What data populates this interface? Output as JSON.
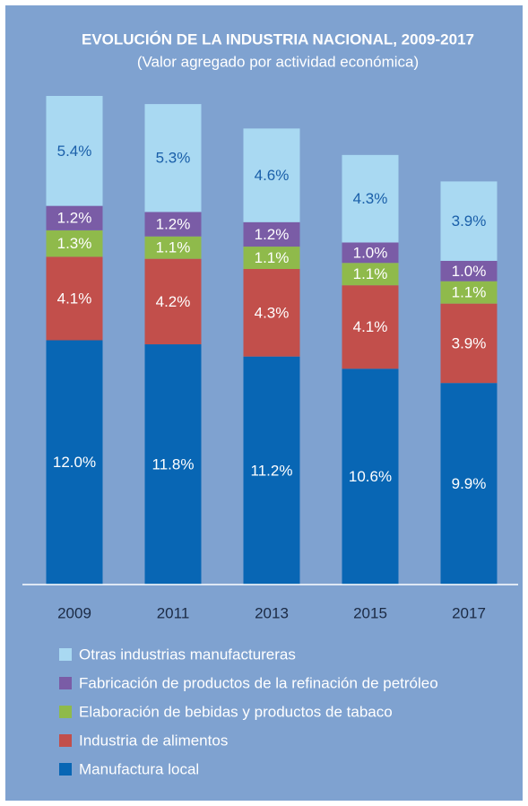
{
  "chart_data": {
    "type": "stacked_bar",
    "title": "EVOLUCIÓN DE LA INDUSTRIA NACIONAL, 2009-2017",
    "subtitle": "(Valor agregado por actividad económica)",
    "categories": [
      "2009",
      "2011",
      "2013",
      "2015",
      "2017"
    ],
    "series": [
      {
        "name": "Otras industrias manufactureras",
        "color": "#a9d9f2",
        "values": [
          5.4,
          5.3,
          4.6,
          4.3,
          3.9
        ],
        "value_labels": [
          "5.4%",
          "5.3%",
          "4.6%",
          "4.3%",
          "3.9%"
        ]
      },
      {
        "name": "Fabricación de productos de la refinación de petróleo",
        "color": "#7a5ca6",
        "values": [
          1.2,
          1.2,
          1.2,
          1.0,
          1.0
        ],
        "value_labels": [
          "1.2%",
          "1.2%",
          "1.2%",
          "1.0%",
          "1.0%"
        ]
      },
      {
        "name": "Elaboración de bebidas y productos de tabaco",
        "color": "#8fba4b",
        "values": [
          1.3,
          1.1,
          1.1,
          1.1,
          1.1
        ],
        "value_labels": [
          "1.3%",
          "1.1%",
          "1.1%",
          "1.1%",
          "1.1%"
        ]
      },
      {
        "name": "Industria de alimentos",
        "color": "#c24f4b",
        "values": [
          4.1,
          4.2,
          4.3,
          4.1,
          3.9
        ],
        "value_labels": [
          "4.1%",
          "4.2%",
          "4.3%",
          "4.1%",
          "3.9%"
        ]
      },
      {
        "name": "Manufactura local",
        "color": "#0866b4",
        "values": [
          12.0,
          11.8,
          11.2,
          10.6,
          9.9
        ],
        "value_labels": [
          "12.0%",
          "11.8%",
          "11.2%",
          "10.6%",
          "9.9%"
        ]
      }
    ]
  }
}
